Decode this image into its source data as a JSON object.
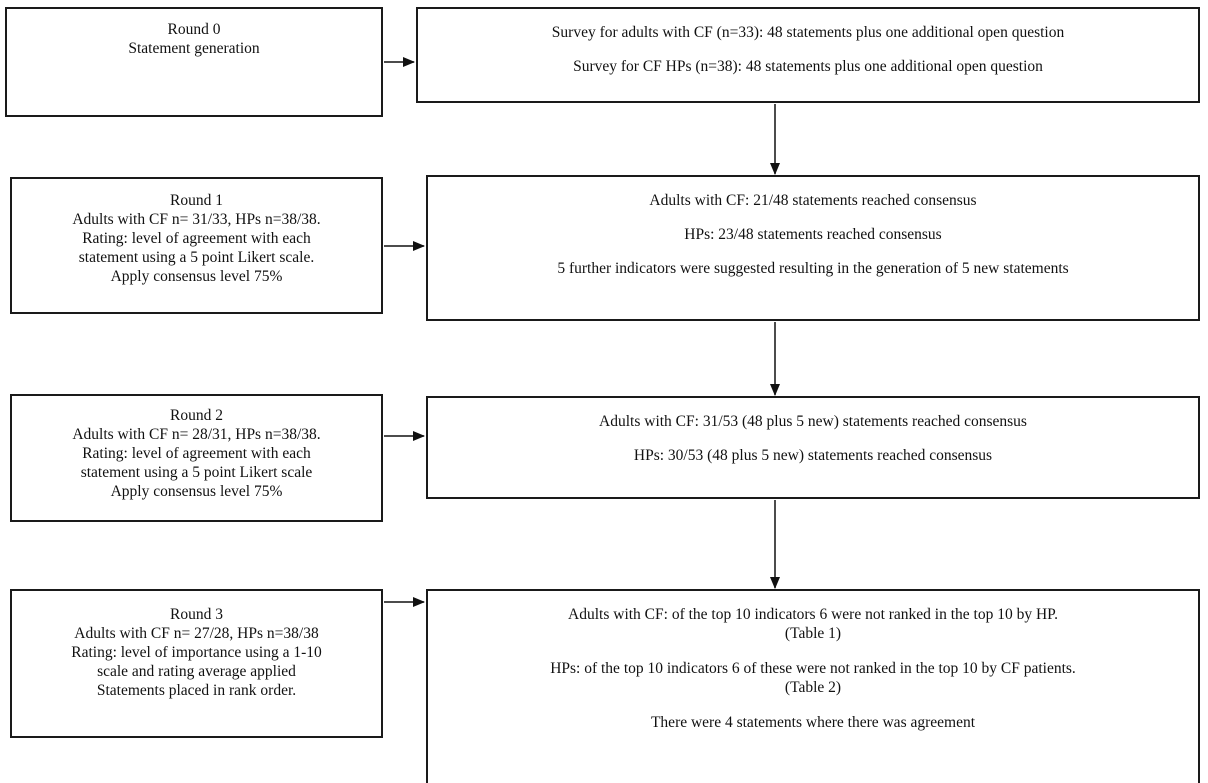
{
  "rounds": [
    {
      "left": [
        "Round 0",
        "Statement generation"
      ],
      "right": [
        "Survey for adults with CF (n=33): 48 statements plus one additional open question",
        "Survey for CF HPs (n=38): 48 statements plus one additional open question"
      ]
    },
    {
      "left": [
        "Round 1",
        "Adults with CF n= 31/33, HPs n=38/38.",
        "Rating: level of agreement with each",
        "statement using a 5 point Likert scale.",
        "Apply consensus level 75%"
      ],
      "right": [
        "Adults with CF: 21/48 statements reached consensus",
        "HPs: 23/48 statements reached consensus",
        "5 further indicators were suggested resulting in the generation of 5 new statements"
      ]
    },
    {
      "left": [
        "Round 2",
        "Adults with CF n= 28/31, HPs n=38/38.",
        "Rating: level of agreement with each",
        "statement using a 5 point Likert scale",
        "Apply consensus level 75%"
      ],
      "right": [
        "Adults with CF: 31/53 (48 plus 5 new) statements reached consensus",
        "HPs: 30/53 (48 plus 5 new) statements reached consensus"
      ]
    },
    {
      "left": [
        "Round 3",
        "Adults with CF n= 27/28, HPs n=38/38",
        "Rating: level of importance using a 1-10",
        "scale and rating average applied",
        "Statements placed in rank order."
      ],
      "right": [
        "Adults with CF: of the top 10 indicators 6 were not ranked in the top 10 by HP.",
        "(Table 1)",
        "HPs: of the top 10 indicators 6 of these were not ranked in the top 10 by CF patients.",
        "(Table 2)",
        "There were 4 statements where there was agreement"
      ]
    }
  ]
}
